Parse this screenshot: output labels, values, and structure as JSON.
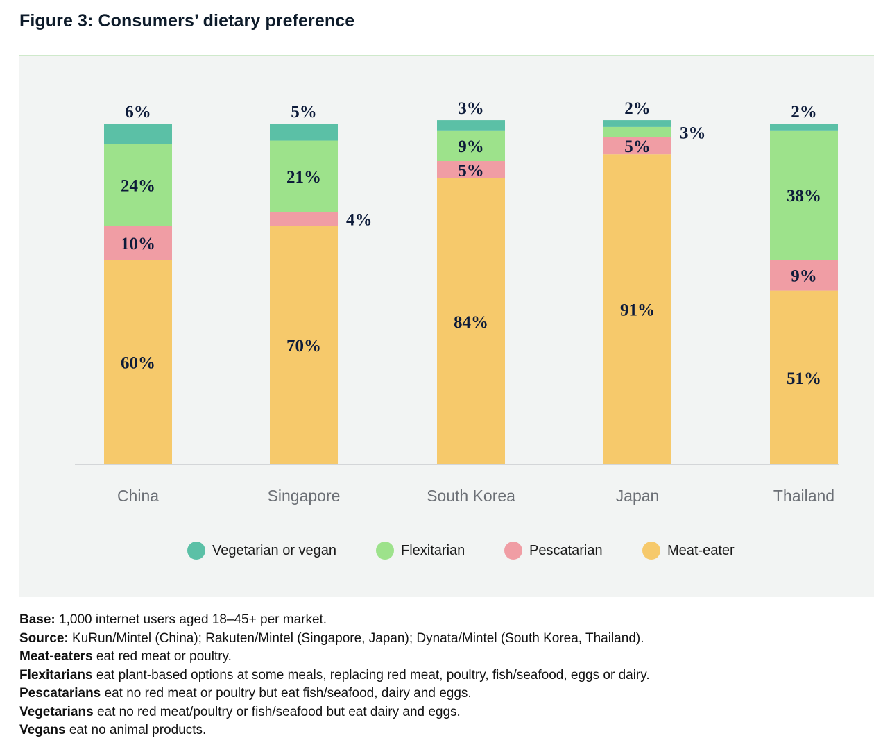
{
  "title": "Figure 3: Consumers’ dietary preference",
  "chart_data": {
    "type": "bar",
    "stacked": true,
    "categories": [
      "China",
      "Singapore",
      "South Korea",
      "Japan",
      "Thailand"
    ],
    "series": [
      {
        "name": "Meat-eater",
        "color": "#f6c96b",
        "values": [
          60,
          70,
          84,
          91,
          51
        ]
      },
      {
        "name": "Pescatarian",
        "color": "#f09da4",
        "values": [
          10,
          4,
          5,
          5,
          9
        ]
      },
      {
        "name": "Flexitarian",
        "color": "#9de28b",
        "values": [
          24,
          21,
          9,
          3,
          38
        ]
      },
      {
        "name": "Vegetarian or vegan",
        "color": "#5bc0a6",
        "values": [
          6,
          5,
          3,
          2,
          2
        ]
      }
    ],
    "legend_order": [
      "Vegetarian or vegan",
      "Flexitarian",
      "Pescatarian",
      "Meat-eater"
    ],
    "legend_position": "bottom",
    "grid": false,
    "value_suffix": "%"
  },
  "notes": [
    {
      "bold": "Base:",
      "text": " 1,000 internet users aged 18–45+ per market."
    },
    {
      "bold": "Source:",
      "text": " KuRun/Mintel (China); Rakuten/Mintel (Singapore, Japan); Dynata/Mintel (South Korea, Thailand)."
    },
    {
      "bold": "Meat-eaters",
      "text": " eat red meat or poultry."
    },
    {
      "bold": "Flexitarians",
      "text": " eat plant-based options at some meals, replacing red meat, poultry, fish/seafood, eggs or dairy."
    },
    {
      "bold": "Pescatarians",
      "text": " eat no red meat or poultry but eat fish/seafood, dairy and eggs."
    },
    {
      "bold": "Vegetarians",
      "text": " eat no red meat/poultry or fish/seafood but eat dairy and eggs."
    },
    {
      "bold": "Vegans",
      "text": " eat no animal products."
    }
  ]
}
